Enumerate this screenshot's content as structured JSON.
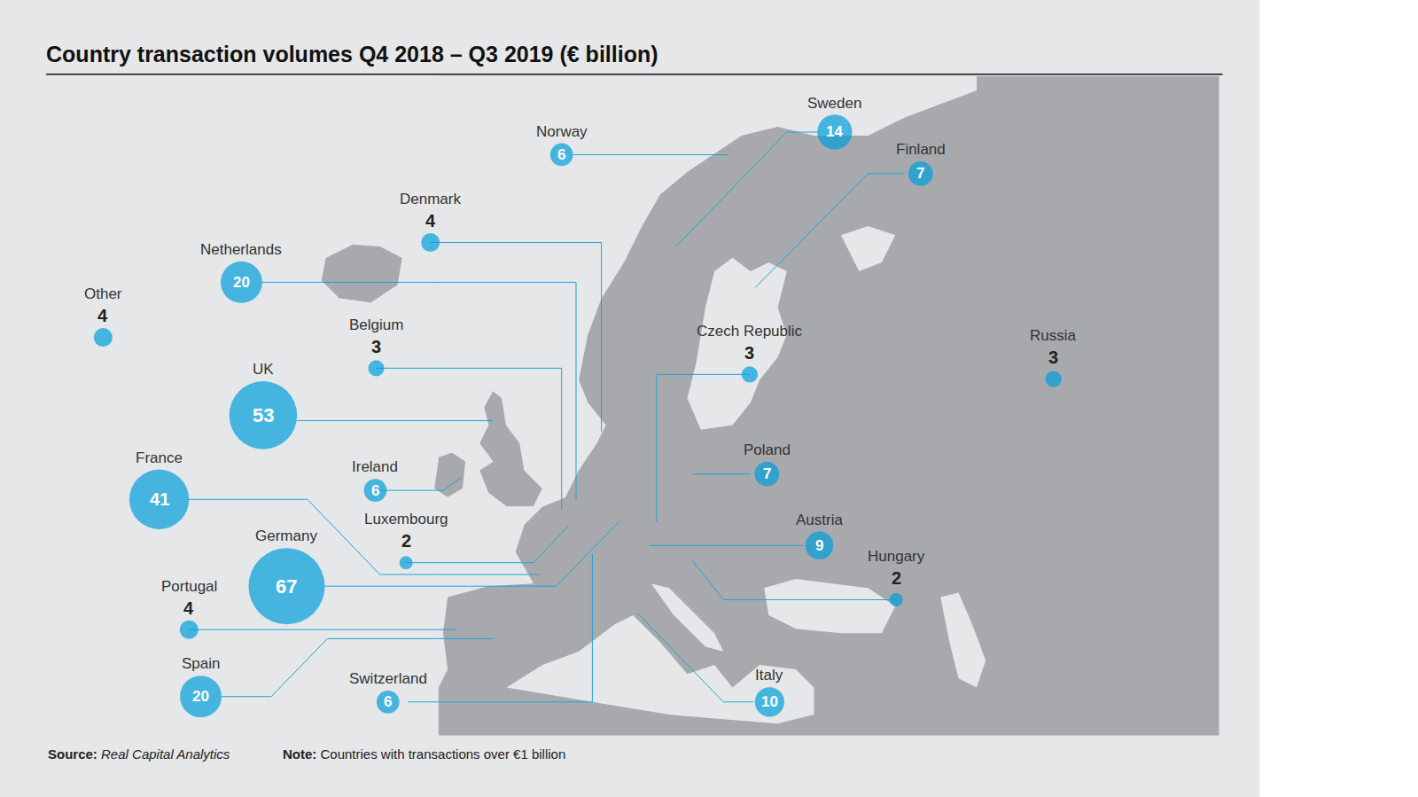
{
  "chart_data": {
    "type": "bubble_map",
    "title": "Country transaction volumes Q4 2018 – Q3 2019 (€ billion)",
    "categories": [
      "Sweden",
      "Norway",
      "Finland",
      "Denmark",
      "Netherlands",
      "Other",
      "Belgium",
      "Czech Republic",
      "Russia",
      "UK",
      "Poland",
      "Ireland",
      "France",
      "Luxembourg",
      "Austria",
      "Germany",
      "Hungary",
      "Portugal",
      "Spain",
      "Switzerland",
      "Italy"
    ],
    "values": [
      14,
      6,
      7,
      4,
      20,
      4,
      3,
      3,
      3,
      53,
      7,
      6,
      41,
      2,
      9,
      67,
      2,
      4,
      20,
      6,
      10
    ],
    "color": "#00a0dc",
    "data_labels": true,
    "tick_labels": false
  },
  "source_label": "Source:",
  "source": "Real Capital Analytics",
  "note_label": "Note:",
  "note": "Countries with transactions over €1 billion"
}
